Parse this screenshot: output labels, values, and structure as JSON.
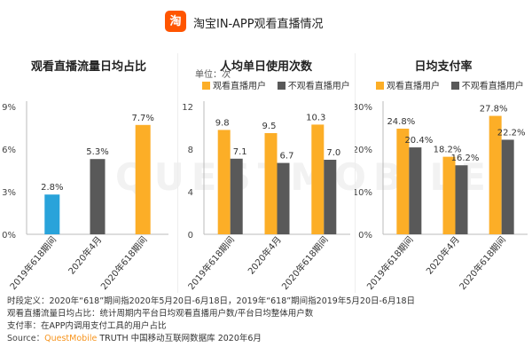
{
  "header": {
    "logo_text": "淘",
    "title": "淘宝IN-APP观看直播情况"
  },
  "colors": {
    "blue": "#29a3da",
    "gray": "#595959",
    "orange": "#fcae27",
    "axis": "#bbbbbb"
  },
  "chart_data": [
    {
      "type": "bar",
      "title": "观看直播流量日均占比",
      "categories": [
        "2019年618期间",
        "2020年4月",
        "2020年618期间"
      ],
      "values": [
        2.8,
        5.3,
        7.7
      ],
      "labels": [
        "2.8%",
        "5.3%",
        "7.7%"
      ],
      "bar_colors": [
        "#29a3da",
        "#595959",
        "#fcae27"
      ],
      "yticks": [
        "9%",
        "6%",
        "3%",
        "0%"
      ],
      "ylim": [
        0,
        9
      ],
      "grid": false
    },
    {
      "type": "bar",
      "title": "人均单日使用次数",
      "unit": "单位：次",
      "categories": [
        "2019年618期间",
        "2020年4月",
        "2020年618期间"
      ],
      "series": [
        {
          "name": "观看直播用户",
          "color": "#fcae27",
          "values": [
            9.8,
            9.5,
            10.3
          ],
          "labels": [
            "9.8",
            "9.5",
            "10.3"
          ]
        },
        {
          "name": "不观看直播用户",
          "color": "#595959",
          "values": [
            7.1,
            6.7,
            7.0
          ],
          "labels": [
            "7.1",
            "6.7",
            "7.0"
          ]
        }
      ],
      "yticks": [
        "12",
        "8",
        "4",
        "0"
      ],
      "ylim": [
        0,
        12
      ],
      "legend": "top",
      "grid": false
    },
    {
      "type": "bar",
      "title": "日均支付率",
      "categories": [
        "2019年618期间",
        "2020年4月",
        "2020年618期间"
      ],
      "series": [
        {
          "name": "观看直播用户",
          "color": "#fcae27",
          "values": [
            24.8,
            18.2,
            27.8
          ],
          "labels": [
            "24.8%",
            "18.2%",
            "27.8%"
          ]
        },
        {
          "name": "不观看直播用户",
          "color": "#595959",
          "values": [
            20.4,
            16.2,
            22.2
          ],
          "labels": [
            "20.4%",
            "16.2%",
            "22.2%"
          ]
        }
      ],
      "yticks": [
        "30%",
        "20%",
        "10%",
        "0%"
      ],
      "ylim": [
        0,
        30
      ],
      "legend": "top",
      "grid": false
    }
  ],
  "notes": {
    "line1": "时段定义：2020年“618”期间指2020年5月20日-6月18日，2019年“618”期间指2019年5月20日-6月18日",
    "line2": "观看直播流量日均占比：统计周期内平台日均观看直播用户数/平台日均整体用户数",
    "line3": "支付率：在APP内调用支付工具的用户占比",
    "source_label": "Source：",
    "source_brand": "QuestMobile",
    "source_rest": " TRUTH 中国移动互联网数据库 2020年6月"
  },
  "watermark": "QUESTMOBILE"
}
